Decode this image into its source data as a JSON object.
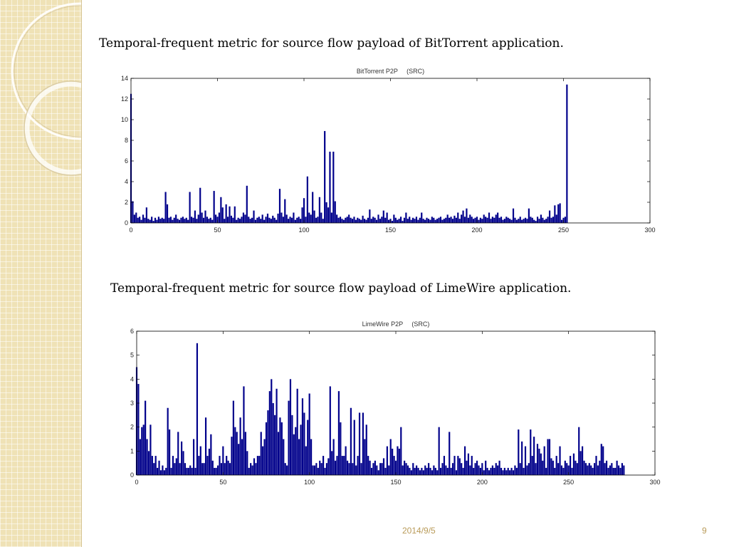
{
  "slide": {
    "caption_bittorrent": "Temporal-frequent metric for source flow payload of BitTorrent application.",
    "caption_limewire": "Temporal-frequent metric for source flow payload of LimeWire application.",
    "footer_date": "2014/9/5",
    "page_number": "9"
  },
  "colors": {
    "bar": "#00008b",
    "sidebar": "#efe2b6",
    "footer_text": "#b99b59"
  },
  "chart_data": [
    {
      "type": "bar",
      "title": "BitTorrent P2P     (SRC)",
      "xlabel": "",
      "ylabel": "",
      "xlim": [
        0,
        300
      ],
      "ylim": [
        0,
        14
      ],
      "xticks": [
        0,
        50,
        100,
        150,
        200,
        250,
        300
      ],
      "yticks": [
        0,
        2,
        4,
        6,
        8,
        10,
        12,
        14
      ],
      "grid": false,
      "x_start": 0,
      "values": [
        12.5,
        2.1,
        0.8,
        1.0,
        0.5,
        0.6,
        0.3,
        0.8,
        0.5,
        1.5,
        0.4,
        0.3,
        0.6,
        0.2,
        0.5,
        0.3,
        0.6,
        0.4,
        0.5,
        0.4,
        3.0,
        1.8,
        0.5,
        0.6,
        0.3,
        0.5,
        0.8,
        0.4,
        0.3,
        0.5,
        0.6,
        0.4,
        0.5,
        0.3,
        3.0,
        0.6,
        0.5,
        1.2,
        0.4,
        0.8,
        3.4,
        1.0,
        0.5,
        1.2,
        0.6,
        0.4,
        0.5,
        0.3,
        3.1,
        0.8,
        0.6,
        1.0,
        2.5,
        1.5,
        0.4,
        1.8,
        0.6,
        1.6,
        0.7,
        0.5,
        1.6,
        0.3,
        0.5,
        0.4,
        0.6,
        1.0,
        0.8,
        3.6,
        0.6,
        0.4,
        0.5,
        1.2,
        0.3,
        0.5,
        0.6,
        0.4,
        0.8,
        0.3,
        0.6,
        0.9,
        0.5,
        0.4,
        0.7,
        0.5,
        0.3,
        0.9,
        3.3,
        1.0,
        0.6,
        2.3,
        0.8,
        0.4,
        0.6,
        0.5,
        1.0,
        0.3,
        0.5,
        0.6,
        0.4,
        1.5,
        2.4,
        0.6,
        4.5,
        1.0,
        0.8,
        3.0,
        1.2,
        0.5,
        0.6,
        2.5,
        1.0,
        0.4,
        8.9,
        2.0,
        1.5,
        6.9,
        1.0,
        6.9,
        2.1,
        0.8,
        0.5,
        0.6,
        0.4,
        0.3,
        0.5,
        0.6,
        0.8,
        0.5,
        0.4,
        0.6,
        0.3,
        0.5,
        0.4,
        0.3,
        0.7,
        0.4,
        0.3,
        0.5,
        1.3,
        0.4,
        0.6,
        0.5,
        0.3,
        0.8,
        0.4,
        0.6,
        1.2,
        0.5,
        1.0,
        0.3,
        0.4,
        0.2,
        0.8,
        0.5,
        0.3,
        0.4,
        0.6,
        0.2,
        0.5,
        1.0,
        0.4,
        0.6,
        0.3,
        0.5,
        0.4,
        0.6,
        0.3,
        0.5,
        1.0,
        0.4,
        0.3,
        0.5,
        0.4,
        0.3,
        0.6,
        0.5,
        0.3,
        0.4,
        0.5,
        0.6,
        0.3,
        0.4,
        0.5,
        0.8,
        0.5,
        0.6,
        0.4,
        0.7,
        0.5,
        1.0,
        0.4,
        0.8,
        1.2,
        0.6,
        1.4,
        0.5,
        0.8,
        0.6,
        0.4,
        0.5,
        0.6,
        0.3,
        0.5,
        0.4,
        0.8,
        0.6,
        0.5,
        1.0,
        0.4,
        0.6,
        0.5,
        0.8,
        1.0,
        0.5,
        0.6,
        0.3,
        0.4,
        0.6,
        0.5,
        0.4,
        0.3,
        1.4,
        0.5,
        0.3,
        0.4,
        0.6,
        0.3,
        0.4,
        0.5,
        0.4,
        1.4,
        0.6,
        0.5,
        0.3,
        0.2,
        0.6,
        0.4,
        0.8,
        0.5,
        0.3,
        0.4,
        0.6,
        1.2,
        0.5,
        0.6,
        1.7,
        0.8,
        1.8,
        1.9,
        0.3,
        0.5,
        0.6,
        13.4
      ]
    },
    {
      "type": "bar",
      "title": "LimeWire P2P     (SRC)",
      "xlabel": "",
      "ylabel": "",
      "xlim": [
        0,
        300
      ],
      "ylim": [
        0,
        6
      ],
      "xticks": [
        0,
        50,
        100,
        150,
        200,
        250,
        300
      ],
      "yticks": [
        0,
        1,
        2,
        3,
        4,
        5,
        6
      ],
      "grid": false,
      "x_start": 0,
      "values": [
        4.5,
        3.8,
        1.5,
        2.0,
        2.1,
        3.1,
        1.5,
        1.0,
        2.1,
        0.8,
        0.5,
        0.8,
        0.3,
        0.6,
        0.2,
        0.4,
        0.2,
        0.3,
        2.8,
        1.9,
        0.3,
        0.8,
        0.5,
        0.7,
        1.8,
        0.5,
        1.4,
        1.0,
        0.5,
        0.3,
        0.3,
        0.4,
        0.3,
        1.5,
        0.3,
        5.5,
        0.8,
        1.2,
        0.5,
        0.5,
        2.4,
        0.8,
        1.1,
        1.7,
        0.6,
        0.3,
        0.3,
        0.4,
        0.8,
        0.5,
        1.2,
        0.5,
        0.8,
        0.6,
        0.5,
        1.6,
        3.1,
        2.0,
        1.8,
        1.3,
        2.4,
        1.5,
        3.7,
        1.8,
        1.0,
        0.3,
        0.5,
        0.4,
        0.7,
        0.5,
        0.8,
        0.8,
        1.8,
        1.2,
        1.5,
        2.2,
        2.7,
        3.5,
        4.0,
        3.0,
        2.5,
        3.6,
        1.8,
        2.4,
        2.2,
        1.5,
        0.5,
        0.4,
        3.1,
        4.0,
        2.5,
        1.7,
        2.0,
        3.6,
        1.5,
        2.1,
        3.2,
        2.6,
        1.2,
        2.3,
        3.4,
        1.5,
        0.4,
        0.4,
        0.5,
        0.3,
        0.6,
        0.5,
        0.8,
        0.3,
        0.5,
        0.7,
        3.7,
        1.0,
        1.5,
        0.6,
        0.8,
        3.5,
        2.2,
        0.8,
        0.8,
        1.2,
        0.6,
        0.5,
        2.8,
        0.5,
        2.3,
        0.4,
        0.8,
        2.6,
        0.5,
        2.6,
        1.5,
        2.1,
        0.8,
        0.6,
        0.3,
        0.5,
        0.6,
        0.4,
        0.2,
        0.5,
        0.5,
        0.7,
        0.3,
        1.2,
        0.4,
        1.5,
        1.1,
        0.8,
        0.6,
        1.2,
        1.1,
        2.0,
        0.4,
        0.6,
        0.5,
        0.4,
        0.3,
        0.2,
        0.5,
        0.3,
        0.4,
        0.3,
        0.2,
        0.3,
        0.2,
        0.4,
        0.3,
        0.5,
        0.3,
        0.2,
        0.4,
        0.3,
        0.2,
        2.0,
        0.3,
        0.5,
        0.8,
        0.4,
        0.3,
        1.8,
        0.3,
        0.5,
        0.8,
        0.2,
        0.8,
        0.7,
        0.5,
        0.3,
        1.2,
        0.6,
        0.9,
        0.4,
        0.8,
        0.3,
        0.5,
        0.6,
        0.4,
        0.3,
        0.5,
        0.2,
        0.6,
        0.3,
        0.2,
        0.3,
        0.4,
        0.3,
        0.5,
        0.4,
        0.6,
        0.3,
        0.2,
        0.3,
        0.2,
        0.3,
        0.2,
        0.3,
        0.2,
        0.4,
        0.3,
        1.9,
        0.5,
        1.4,
        0.3,
        1.2,
        0.4,
        0.5,
        1.9,
        0.8,
        1.6,
        0.5,
        1.3,
        1.1,
        0.9,
        0.6,
        1.2,
        0.3,
        1.5,
        1.5,
        0.7,
        0.6,
        0.3,
        0.8,
        0.5,
        1.2,
        0.4,
        0.3,
        0.6,
        0.5,
        0.4,
        0.8,
        0.3,
        0.9,
        0.6,
        0.5,
        2.0,
        1.0,
        1.2,
        0.6,
        0.5,
        0.4,
        0.5,
        0.4,
        0.3,
        0.5,
        0.8,
        0.4,
        0.6,
        1.3,
        1.2,
        0.5,
        0.6,
        0.3,
        0.4,
        0.5,
        0.3,
        0.3,
        0.6,
        0.4,
        0.3,
        0.5,
        0.4
      ]
    }
  ]
}
